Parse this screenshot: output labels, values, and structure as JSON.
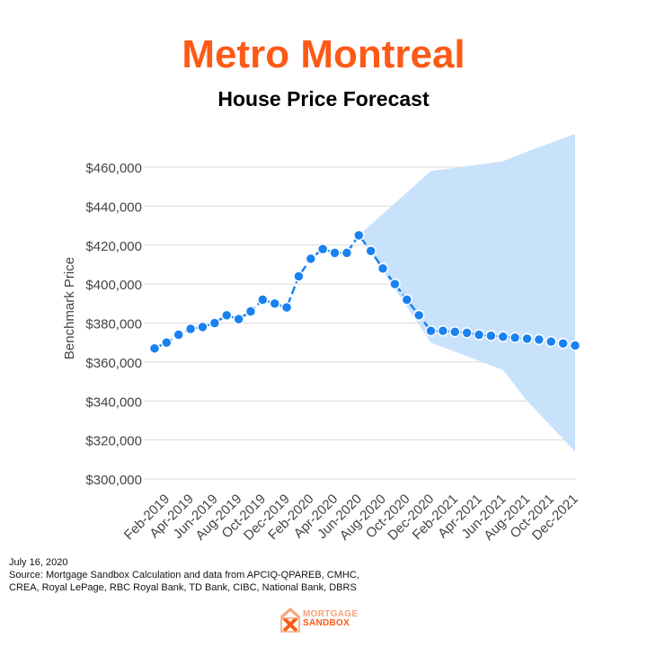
{
  "title": "Metro Montreal",
  "subtitle": "House Price Forecast",
  "footer": {
    "date": "July 16, 2020",
    "source_line1": "Source: Mortgage Sandbox Calculation and data from APCIQ-QPAREB, CMHC,",
    "source_line2": "CREA, Royal LePage, RBC Royal Bank, TD Bank, CIBC, National Bank, DBRS"
  },
  "logo": {
    "line1": "MORTGAGE",
    "line2": "SANDBOX",
    "icon": "house-x-logo-icon"
  },
  "colors": {
    "title": "#fd5a17",
    "line": "#1a82f0",
    "band": "#c9e2fb",
    "grid": "#d9d9d9",
    "text": "#444444"
  },
  "chart_data": {
    "type": "line",
    "ylabel": "Benchmark Price",
    "xlabel": "",
    "ylim": [
      300000,
      460000
    ],
    "y_ticks": [
      {
        "value": 300000,
        "label": "$300,000"
      },
      {
        "value": 320000,
        "label": "$320,000"
      },
      {
        "value": 340000,
        "label": "$340,000"
      },
      {
        "value": 360000,
        "label": "$360,000"
      },
      {
        "value": 380000,
        "label": "$380,000"
      },
      {
        "value": 400000,
        "label": "$400,000"
      },
      {
        "value": 420000,
        "label": "$420,000"
      },
      {
        "value": 440000,
        "label": "$440,000"
      },
      {
        "value": 460000,
        "label": "$460,000"
      }
    ],
    "x": [
      "Jan-2019",
      "Feb-2019",
      "Mar-2019",
      "Apr-2019",
      "May-2019",
      "Jun-2019",
      "Jul-2019",
      "Aug-2019",
      "Sep-2019",
      "Oct-2019",
      "Nov-2019",
      "Dec-2019",
      "Jan-2020",
      "Feb-2020",
      "Mar-2020",
      "Apr-2020",
      "May-2020",
      "Jun-2020",
      "Jul-2020",
      "Aug-2020",
      "Sep-2020",
      "Oct-2020",
      "Nov-2020",
      "Dec-2020",
      "Jan-2021",
      "Feb-2021",
      "Mar-2021",
      "Apr-2021",
      "May-2021",
      "Jun-2021",
      "Jul-2021",
      "Aug-2021",
      "Sep-2021",
      "Oct-2021",
      "Nov-2021",
      "Dec-2021"
    ],
    "x_tick_labels": [
      "Feb-2019",
      "Apr-2019",
      "Jun-2019",
      "Aug-2019",
      "Oct-2019",
      "Dec-2019",
      "Feb-2020",
      "Apr-2020",
      "Jun-2020",
      "Aug-2020",
      "Oct-2020",
      "Dec-2020",
      "Feb-2021",
      "Apr-2021",
      "Jun-2021",
      "Aug-2021",
      "Oct-2021",
      "Dec-2021"
    ],
    "series": [
      {
        "values": [
          367000,
          370000,
          374000,
          377000,
          378000,
          380000,
          384000,
          382000,
          386000,
          392000,
          390000,
          388000,
          404000,
          413000,
          418000,
          416000,
          416000,
          425000,
          417000,
          408000,
          400000,
          392000,
          384000,
          376000,
          376000,
          375500,
          375000,
          374000,
          373500,
          373000,
          372500,
          372000,
          371500,
          370500,
          369500,
          368500
        ]
      }
    ],
    "forecast_band": {
      "x": [
        "Jun-2020",
        "Dec-2020",
        "Jun-2021",
        "Aug-2021",
        "Dec-2021"
      ],
      "upper": [
        425000,
        458000,
        463000,
        468000,
        477000
      ],
      "lower": [
        425000,
        370000,
        356000,
        340000,
        314000
      ]
    },
    "grid": true,
    "legend": "none"
  }
}
